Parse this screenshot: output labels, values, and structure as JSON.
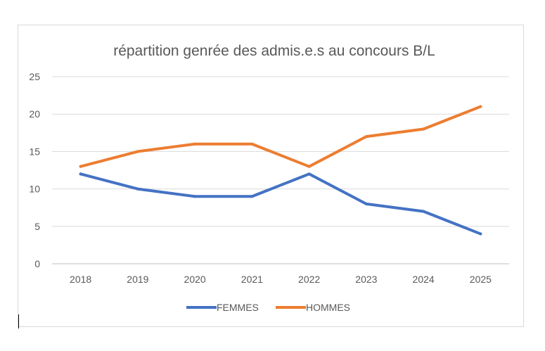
{
  "chart_data": {
    "type": "line",
    "title": "répartition genrée des admis.e.s au concours B/L",
    "xlabel": "",
    "ylabel": "",
    "categories": [
      "2018",
      "2019",
      "2020",
      "2021",
      "2022",
      "2023",
      "2024",
      "2025"
    ],
    "ylim": [
      0,
      25
    ],
    "yticks": [
      "0",
      "5",
      "10",
      "15",
      "20",
      "25"
    ],
    "grid": true,
    "legend_position": "bottom",
    "series": [
      {
        "name": "FEMMES",
        "color": "#4472C4",
        "values": [
          12,
          10,
          9,
          9,
          12,
          8,
          7,
          4
        ]
      },
      {
        "name": "HOMMES",
        "color": "#ED7D31",
        "values": [
          13,
          15,
          16,
          16,
          13,
          17,
          18,
          21
        ]
      }
    ]
  }
}
